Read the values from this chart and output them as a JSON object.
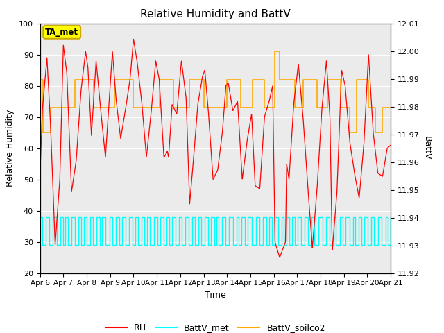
{
  "title": "Relative Humidity and BattV",
  "xlabel": "Time",
  "ylabel_left": "Relative Humidity",
  "ylabel_right": "BattV",
  "ylim_left": [
    20,
    100
  ],
  "ylim_right": [
    11.92,
    12.01
  ],
  "yticks_left": [
    20,
    30,
    40,
    50,
    60,
    70,
    80,
    90,
    100
  ],
  "yticks_right": [
    11.92,
    11.93,
    11.94,
    11.95,
    11.96,
    11.97,
    11.98,
    11.99,
    12.0,
    12.01
  ],
  "xlim": [
    0,
    15
  ],
  "xtick_labels": [
    "Apr 6",
    "Apr 7",
    "Apr 8",
    "Apr 9",
    "Apr 10",
    "Apr 11",
    "Apr 12",
    "Apr 13",
    "Apr 14",
    "Apr 15",
    "Apr 16",
    "Apr 17",
    "Apr 18",
    "Apr 19",
    "Apr 20",
    "Apr 21"
  ],
  "xtick_positions": [
    0,
    1,
    2,
    3,
    4,
    5,
    6,
    7,
    8,
    9,
    10,
    11,
    12,
    13,
    14,
    15
  ],
  "color_RH": "#ff0000",
  "color_BattV_met": "#00ffff",
  "color_BattV_soilco2": "#ffaa00",
  "bg_color": "#ebebeb",
  "annotation_text": "TA_met",
  "annotation_facecolor": "#ffff00",
  "annotation_edgecolor": "#ccaa00",
  "rh_x": [
    0,
    0.1,
    0.3,
    0.45,
    0.65,
    0.85,
    1.0,
    1.15,
    1.35,
    1.55,
    1.75,
    1.95,
    2.05,
    2.2,
    2.4,
    2.6,
    2.8,
    3.0,
    3.1,
    3.25,
    3.45,
    3.65,
    3.85,
    4.0,
    4.15,
    4.35,
    4.55,
    4.75,
    4.95,
    5.1,
    5.3,
    5.45,
    5.5,
    5.65,
    5.85,
    6.05,
    6.25,
    6.4,
    6.55,
    6.75,
    6.95,
    7.05,
    7.2,
    7.4,
    7.6,
    7.8,
    7.95,
    8.05,
    8.25,
    8.45,
    8.65,
    8.85,
    9.05,
    9.2,
    9.4,
    9.6,
    9.8,
    9.95,
    10.05,
    10.25,
    10.4,
    10.5,
    10.55,
    10.65,
    10.85,
    11.05,
    11.25,
    11.45,
    11.65,
    11.85,
    12.05,
    12.25,
    12.4,
    12.5,
    12.7,
    12.9,
    13.05,
    13.25,
    13.45,
    13.65,
    13.85,
    14.05,
    14.25,
    14.45,
    14.65,
    14.85,
    15.0
  ],
  "rh_y": [
    51,
    72,
    89,
    68,
    29,
    50,
    93,
    84,
    46,
    56,
    78,
    91,
    86,
    64,
    88,
    72,
    57,
    80,
    91,
    76,
    63,
    72,
    82,
    95,
    88,
    75,
    57,
    71,
    88,
    82,
    57,
    59,
    57,
    74,
    71,
    88,
    76,
    42,
    55,
    74,
    83,
    85,
    72,
    50,
    53,
    65,
    80,
    81,
    72,
    75,
    50,
    62,
    71,
    48,
    47,
    70,
    75,
    80,
    30,
    25,
    28,
    30,
    55,
    50,
    74,
    87,
    70,
    48,
    28,
    47,
    72,
    88,
    70,
    27,
    46,
    85,
    80,
    62,
    52,
    44,
    61,
    90,
    65,
    52,
    51,
    60,
    61
  ],
  "soil_x": [
    0.0,
    0.12,
    0.12,
    0.45,
    0.45,
    1.5,
    1.5,
    2.3,
    2.3,
    3.2,
    3.2,
    4.0,
    4.0,
    5.1,
    5.1,
    5.7,
    5.7,
    6.4,
    6.4,
    7.0,
    7.0,
    8.0,
    8.0,
    8.6,
    8.6,
    9.1,
    9.1,
    9.6,
    9.6,
    10.05,
    10.05,
    10.25,
    10.25,
    10.9,
    10.9,
    11.25,
    11.25,
    11.85,
    11.85,
    12.3,
    12.3,
    12.85,
    12.85,
    13.25,
    13.25,
    13.55,
    13.55,
    14.05,
    14.05,
    14.35,
    14.35,
    14.65,
    14.65,
    15.0
  ],
  "soil_y": [
    82,
    82,
    65,
    65,
    73,
    73,
    82,
    82,
    73,
    73,
    82,
    82,
    73,
    73,
    82,
    82,
    73,
    73,
    82,
    82,
    73,
    73,
    82,
    82,
    73,
    73,
    82,
    82,
    73,
    73,
    91,
    91,
    82,
    82,
    73,
    73,
    82,
    82,
    73,
    73,
    82,
    82,
    73,
    73,
    65,
    65,
    82,
    82,
    73,
    73,
    65,
    65,
    73,
    73
  ]
}
